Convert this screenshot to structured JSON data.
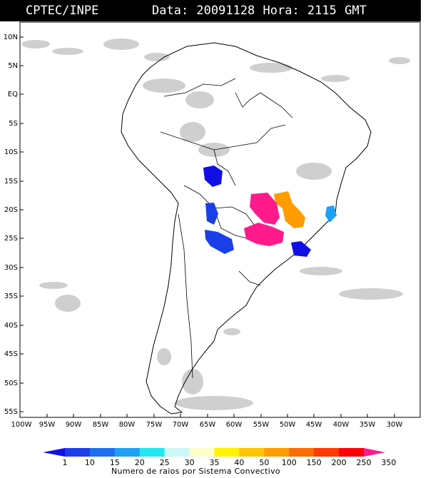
{
  "header": {
    "source": "CPTEC/INPE",
    "info": "Data: 20091128 Hora: 2115 GMT"
  },
  "lat_labels": [
    "10N",
    "5N",
    "EQ",
    "5S",
    "10S",
    "15S",
    "20S",
    "25S",
    "30S",
    "35S",
    "40S",
    "45S",
    "50S",
    "55S"
  ],
  "lon_labels": [
    "100W",
    "95W",
    "90W",
    "85W",
    "80W",
    "75W",
    "70W",
    "65W",
    "60W",
    "55W",
    "50W",
    "45W",
    "40W",
    "35W",
    "30W"
  ],
  "legend": {
    "values": [
      "1",
      "10",
      "15",
      "20",
      "25",
      "30",
      "35",
      "40",
      "50",
      "100",
      "150",
      "200",
      "250",
      "350"
    ],
    "colors": [
      "#1010e6",
      "#1a3fe8",
      "#1e6ff0",
      "#1ea0f4",
      "#22e6f0",
      "#ccf7f7",
      "#fffdc8",
      "#fff300",
      "#ffc400",
      "#ff9c00",
      "#ff6a00",
      "#ff3a00",
      "#ff0008",
      "#ff1a8c"
    ],
    "caption": "Numero de raios por Sistema Convectivo"
  },
  "colors": {
    "header_bg": "#000000",
    "cloud": "#cfcfcf",
    "ocean": "#ffffff",
    "coast": "#000000"
  }
}
